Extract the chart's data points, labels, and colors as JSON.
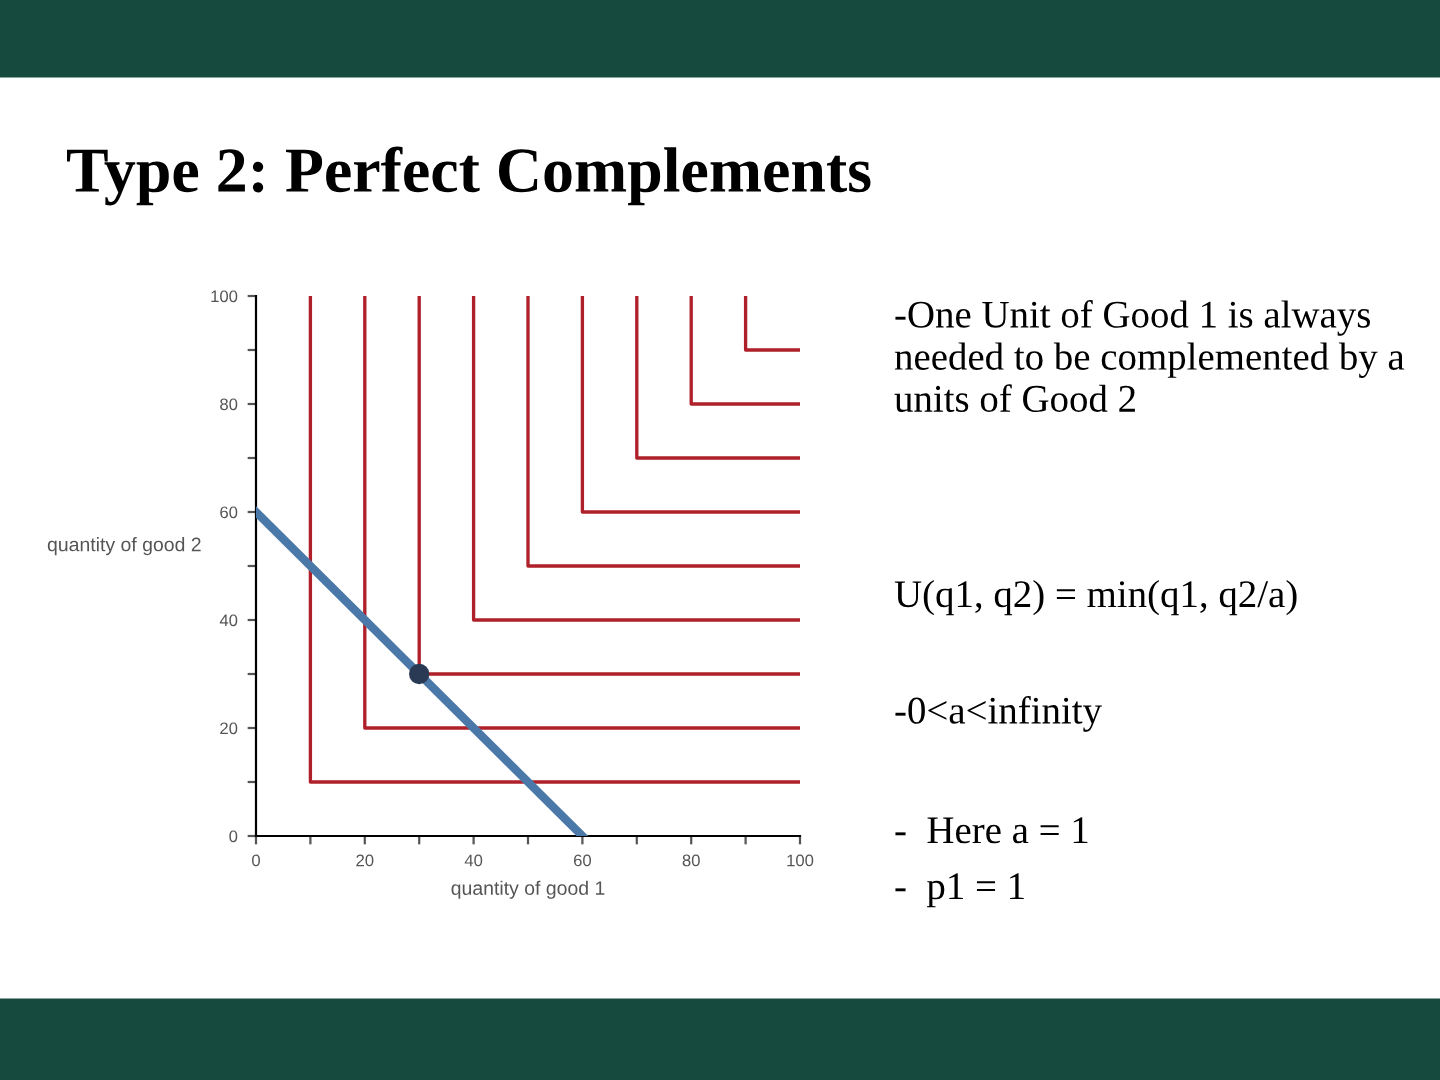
{
  "chart_data": {
    "type": "line",
    "title": "Type 2: Perfect Complements",
    "xlabel": "quantity of good 1",
    "ylabel": "quantity of good 2",
    "xlim": [
      0,
      100
    ],
    "ylim": [
      0,
      100
    ],
    "xticks": [
      0,
      {
        "value": 10,
        "label": null
      },
      20,
      {
        "value": 30,
        "label": null
      },
      40,
      {
        "value": 50,
        "label": null
      },
      60,
      {
        "value": 70,
        "label": null
      },
      80,
      {
        "value": 90,
        "label": null
      },
      100
    ],
    "yticks": [
      0,
      {
        "value": 10,
        "label": null
      },
      20,
      {
        "value": 30,
        "label": null
      },
      40,
      {
        "value": 50,
        "label": null
      },
      60,
      {
        "value": 70,
        "label": null
      },
      80,
      {
        "value": 90,
        "label": null
      },
      100
    ],
    "grid": false,
    "legend": false,
    "marker": "none",
    "line_style": "solid",
    "series": [
      {
        "color": "#b0202a",
        "x": [
          10,
          10,
          100
        ],
        "values": [
          100,
          10,
          10
        ]
      },
      {
        "color": "#b0202a",
        "x": [
          20,
          20,
          100
        ],
        "values": [
          100,
          20,
          20
        ]
      },
      {
        "color": "#b0202a",
        "x": [
          30,
          30,
          100
        ],
        "values": [
          100,
          30,
          30
        ]
      },
      {
        "color": "#b0202a",
        "x": [
          40,
          40,
          100
        ],
        "values": [
          100,
          40,
          40
        ]
      },
      {
        "color": "#b0202a",
        "x": [
          50,
          50,
          100
        ],
        "values": [
          100,
          50,
          50
        ]
      },
      {
        "color": "#b0202a",
        "x": [
          60,
          60,
          100
        ],
        "values": [
          100,
          60,
          60
        ]
      },
      {
        "color": "#b0202a",
        "x": [
          70,
          70,
          100
        ],
        "values": [
          100,
          70,
          70
        ]
      },
      {
        "color": "#b0202a",
        "x": [
          80,
          80,
          100
        ],
        "values": [
          100,
          80,
          80
        ]
      },
      {
        "color": "#b0202a",
        "x": [
          90,
          90,
          100
        ],
        "values": [
          100,
          90,
          90
        ]
      },
      {
        "color": "#4a78a8",
        "x": [
          0,
          60
        ],
        "values": [
          60,
          0
        ]
      },
      {
        "type": "scatter",
        "marker": "circle",
        "color": "#2a3a55",
        "x": [
          30
        ],
        "values": [
          30
        ]
      }
    ],
    "annotations": [
      "-One Unit of Good 1 is always needed to be complemented by a units of Good 2",
      "U(q1, q2) = min(q1, q2/a)",
      "-0<a<infinity",
      "-  Here a = 1",
      "-  p1 = 1"
    ]
  }
}
